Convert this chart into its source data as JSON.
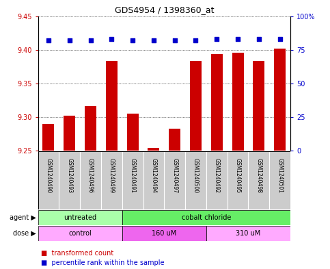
{
  "title": "GDS4954 / 1398360_at",
  "samples": [
    "GSM1240490",
    "GSM1240493",
    "GSM1240496",
    "GSM1240499",
    "GSM1240491",
    "GSM1240494",
    "GSM1240497",
    "GSM1240500",
    "GSM1240492",
    "GSM1240495",
    "GSM1240498",
    "GSM1240501"
  ],
  "bar_values": [
    9.29,
    9.302,
    9.316,
    9.383,
    9.305,
    9.254,
    9.283,
    9.383,
    9.394,
    9.396,
    9.383,
    9.402
  ],
  "percentile_values": [
    82,
    82,
    82,
    83,
    82,
    82,
    82,
    82,
    83,
    83,
    83,
    83
  ],
  "bar_color": "#cc0000",
  "percentile_color": "#0000cc",
  "ylim_left": [
    9.25,
    9.45
  ],
  "ylim_right": [
    0,
    100
  ],
  "yticks_left": [
    9.25,
    9.3,
    9.35,
    9.4,
    9.45
  ],
  "yticks_right": [
    0,
    25,
    50,
    75,
    100
  ],
  "ytick_labels_right": [
    "0",
    "25",
    "50",
    "75",
    "100%"
  ],
  "agent_groups": [
    {
      "label": "untreated",
      "start": 0,
      "end": 4,
      "color": "#aaffaa"
    },
    {
      "label": "cobalt chloride",
      "start": 4,
      "end": 12,
      "color": "#66ee66"
    }
  ],
  "dose_groups": [
    {
      "label": "control",
      "start": 0,
      "end": 4,
      "color": "#ffaaff"
    },
    {
      "label": "160 uM",
      "start": 4,
      "end": 8,
      "color": "#ee66ee"
    },
    {
      "label": "310 uM",
      "start": 8,
      "end": 12,
      "color": "#ffaaff"
    }
  ],
  "legend_bar_label": "transformed count",
  "legend_pct_label": "percentile rank within the sample",
  "bar_width": 0.55,
  "sample_box_color": "#cccccc",
  "plot_bg_color": "#ffffff",
  "title_fontsize": 9,
  "tick_fontsize": 7,
  "label_fontsize": 7,
  "legend_fontsize": 7,
  "sample_fontsize": 5.5
}
